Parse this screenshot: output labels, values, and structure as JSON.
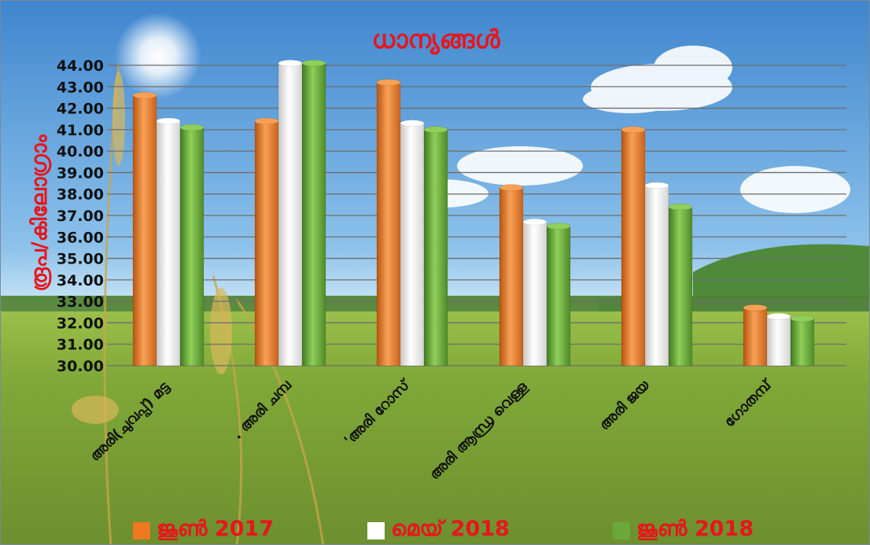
{
  "colors": {
    "title": "#e8151b",
    "series": [
      "#f07820",
      "#ffffff",
      "#6aa83a"
    ],
    "grid": "#6e6e6e"
  },
  "chart_data": {
    "type": "bar",
    "title": "ധാന്യങ്ങൾ",
    "xlabel": "",
    "ylabel": "രൂപ/കിലോഗ്രാം",
    "ylim": [
      30,
      44
    ],
    "yticks": [
      "30.00",
      "31.00",
      "32.00",
      "33.00",
      "34.00",
      "35.00",
      "36.00",
      "37.00",
      "38.00",
      "39.00",
      "40.00",
      "41.00",
      "42.00",
      "43.00",
      "44.00"
    ],
    "grid": true,
    "legend_position": "bottom",
    "categories": [
      "അരി(ചുവപ്പ്) മട്ട",
      ". അരി ചമ്പ",
      "'അരി റോസ്",
      "അരി ആന്ധ്ര വെള്ള",
      "അരി ജയ",
      "ഗോതമ്പ്"
    ],
    "series": [
      {
        "name": "ജൂൺ  2017",
        "values": [
          42.6,
          41.4,
          43.2,
          38.3,
          41.0,
          32.7
        ]
      },
      {
        "name": "മെയ്   2018",
        "values": [
          41.4,
          44.1,
          41.3,
          36.7,
          38.4,
          32.3
        ]
      },
      {
        "name": "ജൂൺ   2018",
        "values": [
          41.1,
          44.1,
          41.0,
          36.5,
          37.4,
          32.2
        ]
      }
    ]
  }
}
